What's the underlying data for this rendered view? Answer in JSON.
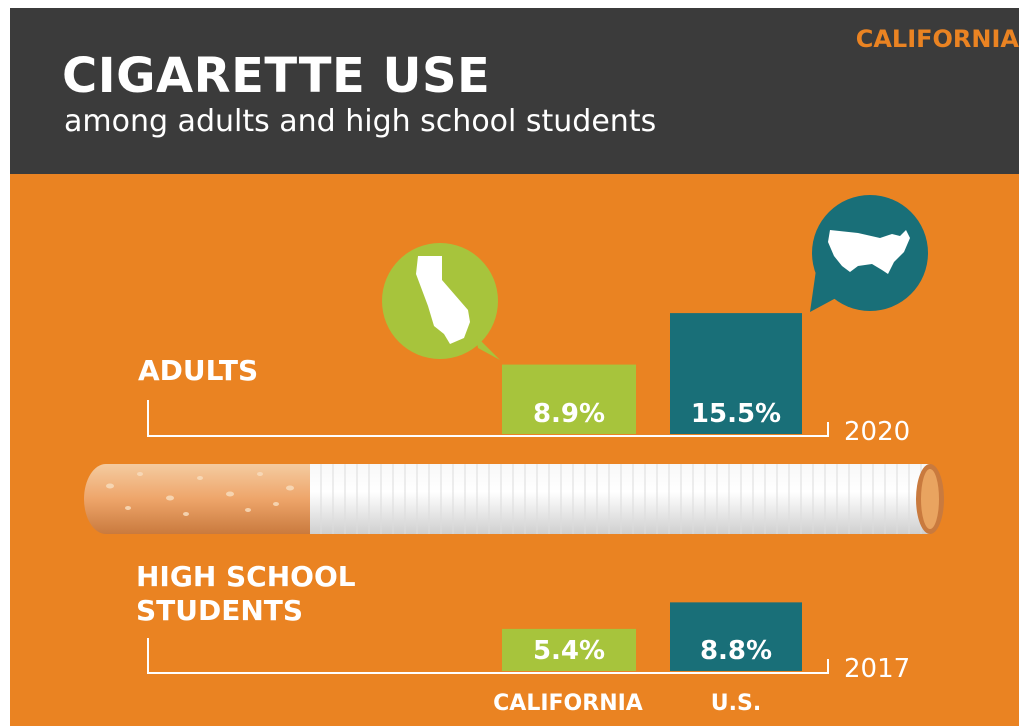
{
  "header": {
    "title": "CIGARETTE USE",
    "subtitle": "among adults and high school students",
    "region": "CALIFORNIA"
  },
  "colors": {
    "background": "#ea8322",
    "header": "#3b3b3b",
    "california": "#a7c43c",
    "us": "#196f78",
    "text": "#ffffff"
  },
  "icons": {
    "california": "california-map-icon",
    "us": "us-map-icon"
  },
  "chart_data": {
    "type": "bar",
    "categories": [
      "CALIFORNIA",
      "U.S."
    ],
    "groups": [
      {
        "label": "ADULTS",
        "year": "2020",
        "values": [
          8.9,
          15.5
        ],
        "value_labels": [
          "8.9%",
          "15.5%"
        ]
      },
      {
        "label_lines": [
          "HIGH SCHOOL",
          "STUDENTS"
        ],
        "year": "2017",
        "values": [
          5.4,
          8.8
        ],
        "value_labels": [
          "5.4%",
          "8.8%"
        ]
      }
    ],
    "unit": "%"
  }
}
